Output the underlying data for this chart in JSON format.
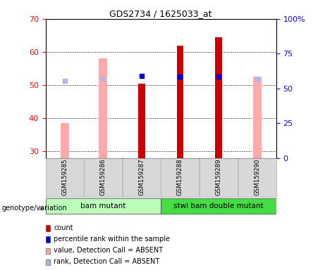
{
  "title": "GDS2734 / 1625033_at",
  "samples": [
    "GSM159285",
    "GSM159286",
    "GSM159287",
    "GSM159288",
    "GSM159289",
    "GSM159290"
  ],
  "ylim_left": [
    28,
    70
  ],
  "ylim_right": [
    0,
    100
  ],
  "yticks_left": [
    30,
    40,
    50,
    60,
    70
  ],
  "yticks_right": [
    0,
    25,
    50,
    75,
    100
  ],
  "ytick_labels_right": [
    "0",
    "25",
    "50",
    "75",
    "100%"
  ],
  "red_bar_values": [
    null,
    null,
    50.5,
    62.0,
    64.5,
    null
  ],
  "pink_bar_values": [
    38.5,
    58.0,
    null,
    null,
    null,
    52.5
  ],
  "blue_marker_values": [
    null,
    null,
    52.8,
    52.5,
    52.5,
    null
  ],
  "lightblue_marker_values": [
    51.2,
    52.0,
    null,
    null,
    null,
    52.0
  ],
  "bar_bottom": 28,
  "red_bar_color": "#cc0000",
  "pink_bar_color": "#ffaaaa",
  "blue_marker_color": "#0000cc",
  "lightblue_marker_color": "#b0b8e8",
  "group1_label": "bam mutant",
  "group2_label": "stwl bam double mutant",
  "group1_indices": [
    0,
    1,
    2
  ],
  "group2_indices": [
    3,
    4,
    5
  ],
  "group1_color": "#bbffbb",
  "group2_color": "#44dd44",
  "genotype_label": "genotype/variation",
  "legend_items": [
    {
      "label": "count",
      "color": "#cc0000"
    },
    {
      "label": "percentile rank within the sample",
      "color": "#0000cc"
    },
    {
      "label": "value, Detection Call = ABSENT",
      "color": "#ffaaaa"
    },
    {
      "label": "rank, Detection Call = ABSENT",
      "color": "#b0b8e8"
    }
  ],
  "red_bar_width": 0.18,
  "pink_bar_width": 0.22,
  "marker_size": 5
}
